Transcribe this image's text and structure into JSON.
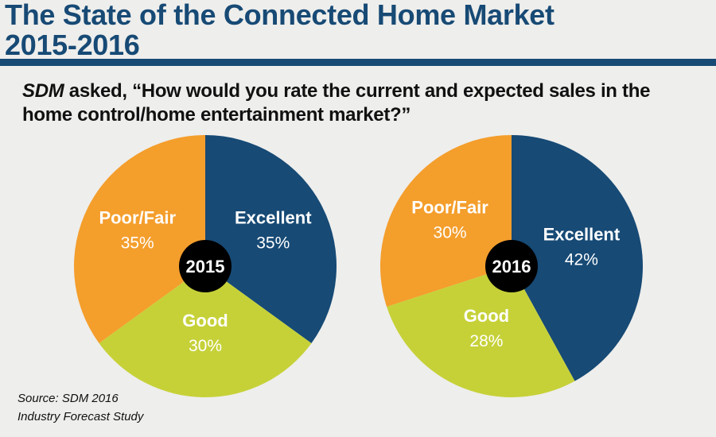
{
  "header": {
    "title_line1": "The State of the Connected Home Market",
    "title_line2": "2015-2016"
  },
  "question": {
    "prefix": "SDM",
    "text": " asked, “How would you rate the current and expected sales in the home control/home entertainment market?”"
  },
  "source": {
    "line1": "Source: SDM 2016",
    "line2": "Industry Forecast Study"
  },
  "colors": {
    "Excellent": "#174a75",
    "Good": "#c6d138",
    "Poor/Fair": "#f49e2c",
    "center": "#000000",
    "text_dark": "#111111"
  },
  "chart_data": [
    {
      "type": "pie",
      "title": "2015",
      "slices": [
        {
          "label": "Excellent",
          "value": 35,
          "display": "35%"
        },
        {
          "label": "Good",
          "value": 30,
          "display": "30%"
        },
        {
          "label": "Poor/Fair",
          "value": 35,
          "display": "35%"
        }
      ]
    },
    {
      "type": "pie",
      "title": "2016",
      "slices": [
        {
          "label": "Excellent",
          "value": 42,
          "display": "42%"
        },
        {
          "label": "Good",
          "value": 28,
          "display": "28%"
        },
        {
          "label": "Poor/Fair",
          "value": 30,
          "display": "30%"
        }
      ]
    }
  ]
}
